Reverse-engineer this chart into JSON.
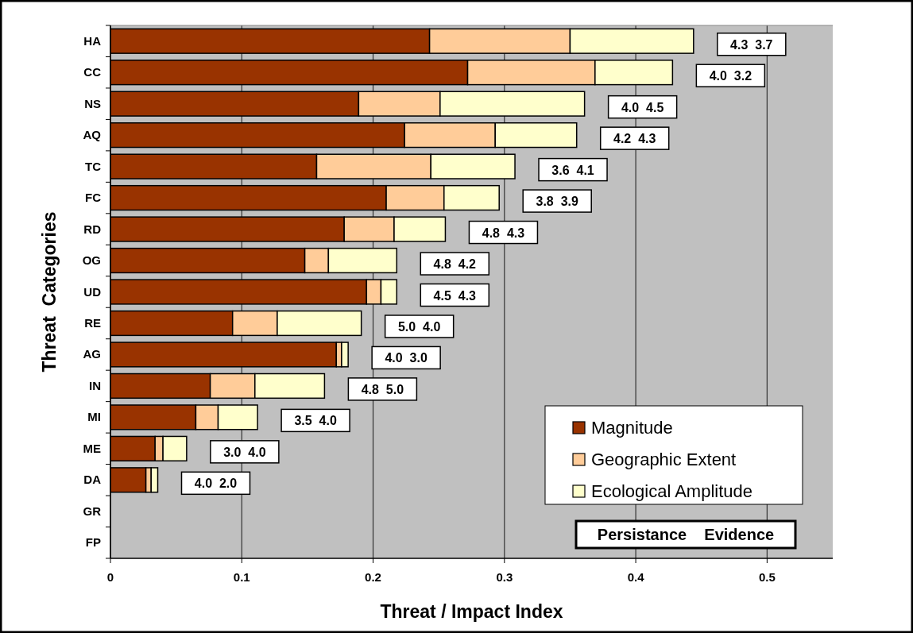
{
  "chart_data": {
    "type": "bar",
    "orientation": "horizontal",
    "stacked": true,
    "xlabel": "Threat / Impact Index",
    "ylabel": "Threat  Categories",
    "categories": [
      "HA",
      "CC",
      "NS",
      "AQ",
      "TC",
      "FC",
      "RD",
      "OG",
      "UD",
      "RE",
      "AG",
      "IN",
      "MI",
      "ME",
      "DA",
      "GR",
      "FP"
    ],
    "series": [
      {
        "name": "Magnitude",
        "color": "#993300",
        "values": [
          0.243,
          0.272,
          0.189,
          0.224,
          0.157,
          0.21,
          0.178,
          0.148,
          0.195,
          0.093,
          0.172,
          0.076,
          0.065,
          0.034,
          0.027,
          null,
          null
        ]
      },
      {
        "name": "Geographic Extent",
        "color": "#ffcc99",
        "values": [
          0.107,
          0.097,
          0.062,
          0.069,
          0.087,
          0.044,
          0.038,
          0.018,
          0.011,
          0.034,
          0.004,
          0.034,
          0.017,
          0.006,
          0.004,
          null,
          null
        ]
      },
      {
        "name": "Ecological Amplitude",
        "color": "#ffffcc",
        "values": [
          0.094,
          0.059,
          0.11,
          0.062,
          0.064,
          0.042,
          0.039,
          0.052,
          0.012,
          0.064,
          0.005,
          0.053,
          0.03,
          0.018,
          0.005,
          null,
          null
        ]
      }
    ],
    "xlim": [
      0,
      0.55
    ],
    "xticks": [
      0,
      0.1,
      0.2,
      0.3,
      0.4,
      0.5
    ],
    "grid": "x",
    "legend": "bottom right",
    "annotations": [
      "4.3  3.7",
      "4.0  3.2",
      "4.0  4.5",
      "4.2  4.3",
      "3.6  4.1",
      "3.8  3.9",
      "4.8  4.3",
      "4.8  4.2",
      "4.5  4.3",
      "5.0  4.0",
      "4.0  3.0",
      "4.8  5.0",
      "3.5  4.0",
      "3.0  4.0",
      "4.0  2.0",
      "Persistance    Evidence"
    ]
  }
}
